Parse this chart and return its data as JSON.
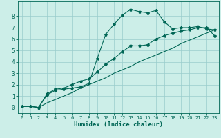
{
  "title": "",
  "xlabel": "Humidex (Indice chaleur)",
  "ylabel": "",
  "bg_color": "#cceee8",
  "line_color": "#006655",
  "grid_color": "#99cccc",
  "xlim": [
    -0.5,
    23.5
  ],
  "ylim": [
    -0.5,
    9.3
  ],
  "xticks": [
    0,
    1,
    2,
    3,
    4,
    5,
    6,
    7,
    8,
    9,
    10,
    11,
    12,
    13,
    14,
    15,
    16,
    17,
    18,
    19,
    20,
    21,
    22,
    23
  ],
  "yticks": [
    0,
    1,
    2,
    3,
    4,
    5,
    6,
    7,
    8
  ],
  "line1_x": [
    0,
    1,
    2,
    3,
    4,
    5,
    6,
    7,
    8,
    9,
    10,
    11,
    12,
    13,
    14,
    15,
    16,
    17,
    18,
    19,
    20,
    21,
    22,
    23
  ],
  "line1_y": [
    0.1,
    0.1,
    0.0,
    1.1,
    1.5,
    1.6,
    1.7,
    1.8,
    2.1,
    4.3,
    6.4,
    7.3,
    8.1,
    8.6,
    8.4,
    8.3,
    8.5,
    7.5,
    6.9,
    7.0,
    7.0,
    7.1,
    6.9,
    6.8
  ],
  "line2_x": [
    0,
    1,
    2,
    3,
    4,
    5,
    6,
    7,
    8,
    9,
    10,
    11,
    12,
    13,
    14,
    15,
    16,
    17,
    18,
    19,
    20,
    21,
    22,
    23
  ],
  "line2_y": [
    0.1,
    0.1,
    0.0,
    1.2,
    1.6,
    1.7,
    2.0,
    2.3,
    2.5,
    3.1,
    3.8,
    4.3,
    4.9,
    5.4,
    5.4,
    5.5,
    6.0,
    6.3,
    6.5,
    6.7,
    6.8,
    7.0,
    7.0,
    6.3
  ],
  "line3_x": [
    0,
    1,
    2,
    3,
    4,
    5,
    6,
    7,
    8,
    9,
    10,
    11,
    12,
    13,
    14,
    15,
    16,
    17,
    18,
    19,
    20,
    21,
    22,
    23
  ],
  "line3_y": [
    0.1,
    0.1,
    0.0,
    0.4,
    0.7,
    1.0,
    1.3,
    1.7,
    2.0,
    2.3,
    2.6,
    3.0,
    3.3,
    3.6,
    4.0,
    4.3,
    4.6,
    4.9,
    5.2,
    5.6,
    5.9,
    6.2,
    6.5,
    6.8
  ],
  "tick_fontsize": 5,
  "xlabel_fontsize": 6.5,
  "lw": 0.8,
  "marker_size": 3.0
}
